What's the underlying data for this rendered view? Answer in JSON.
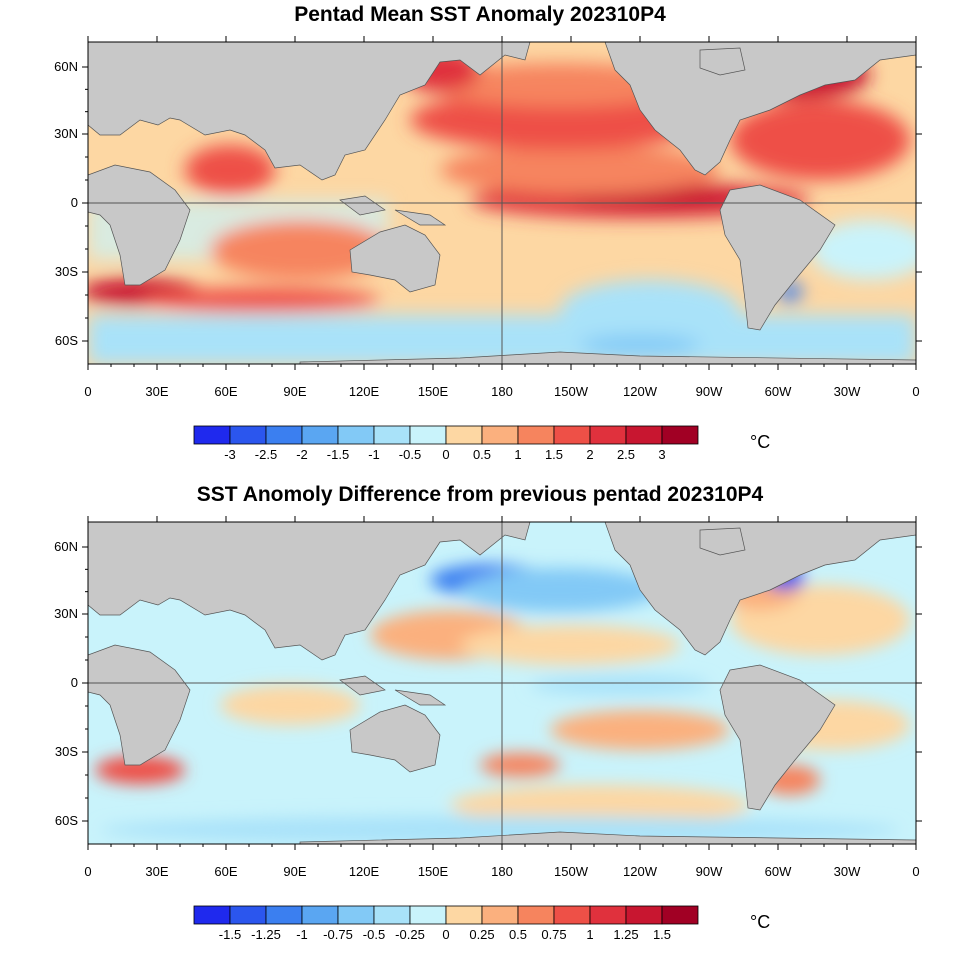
{
  "panels": [
    {
      "title": "Pentad Mean SST Anomaly 202310P4",
      "lat_labels": [
        "60N",
        "30N",
        "0",
        "30S",
        "60S"
      ],
      "lon_labels": [
        "0",
        "30E",
        "60E",
        "90E",
        "120E",
        "150E",
        "180",
        "150W",
        "120W",
        "90W",
        "60W",
        "30W",
        "0"
      ],
      "colorbar_labels": [
        "-3",
        "-2.5",
        "-2",
        "-1.5",
        "-1",
        "-0.5",
        "0",
        "0.5",
        "1",
        "1.5",
        "2",
        "2.5",
        "3"
      ],
      "unit": "°C"
    },
    {
      "title": "SST Anomoly Difference from previous pentad 202310P4",
      "lat_labels": [
        "60N",
        "30N",
        "0",
        "30S",
        "60S"
      ],
      "lon_labels": [
        "0",
        "30E",
        "60E",
        "90E",
        "120E",
        "150E",
        "180",
        "150W",
        "120W",
        "90W",
        "60W",
        "30W",
        "0"
      ],
      "colorbar_labels": [
        "-1.5",
        "-1.25",
        "-1",
        "-0.75",
        "-0.5",
        "-0.25",
        "0",
        "0.25",
        "0.5",
        "0.75",
        "1",
        "1.25",
        "1.5"
      ],
      "unit": "°C"
    }
  ],
  "colors": {
    "land": "#c8c8c8",
    "palette": [
      "#1f29ee",
      "#2b56ee",
      "#3b7ff0",
      "#5aa6f2",
      "#82c9f6",
      "#a9e2f9",
      "#c9f3fb",
      "#fdd7a3",
      "#fbb07e",
      "#f6845e",
      "#ee5047",
      "#e0313d",
      "#c81630",
      "#a10024"
    ]
  }
}
